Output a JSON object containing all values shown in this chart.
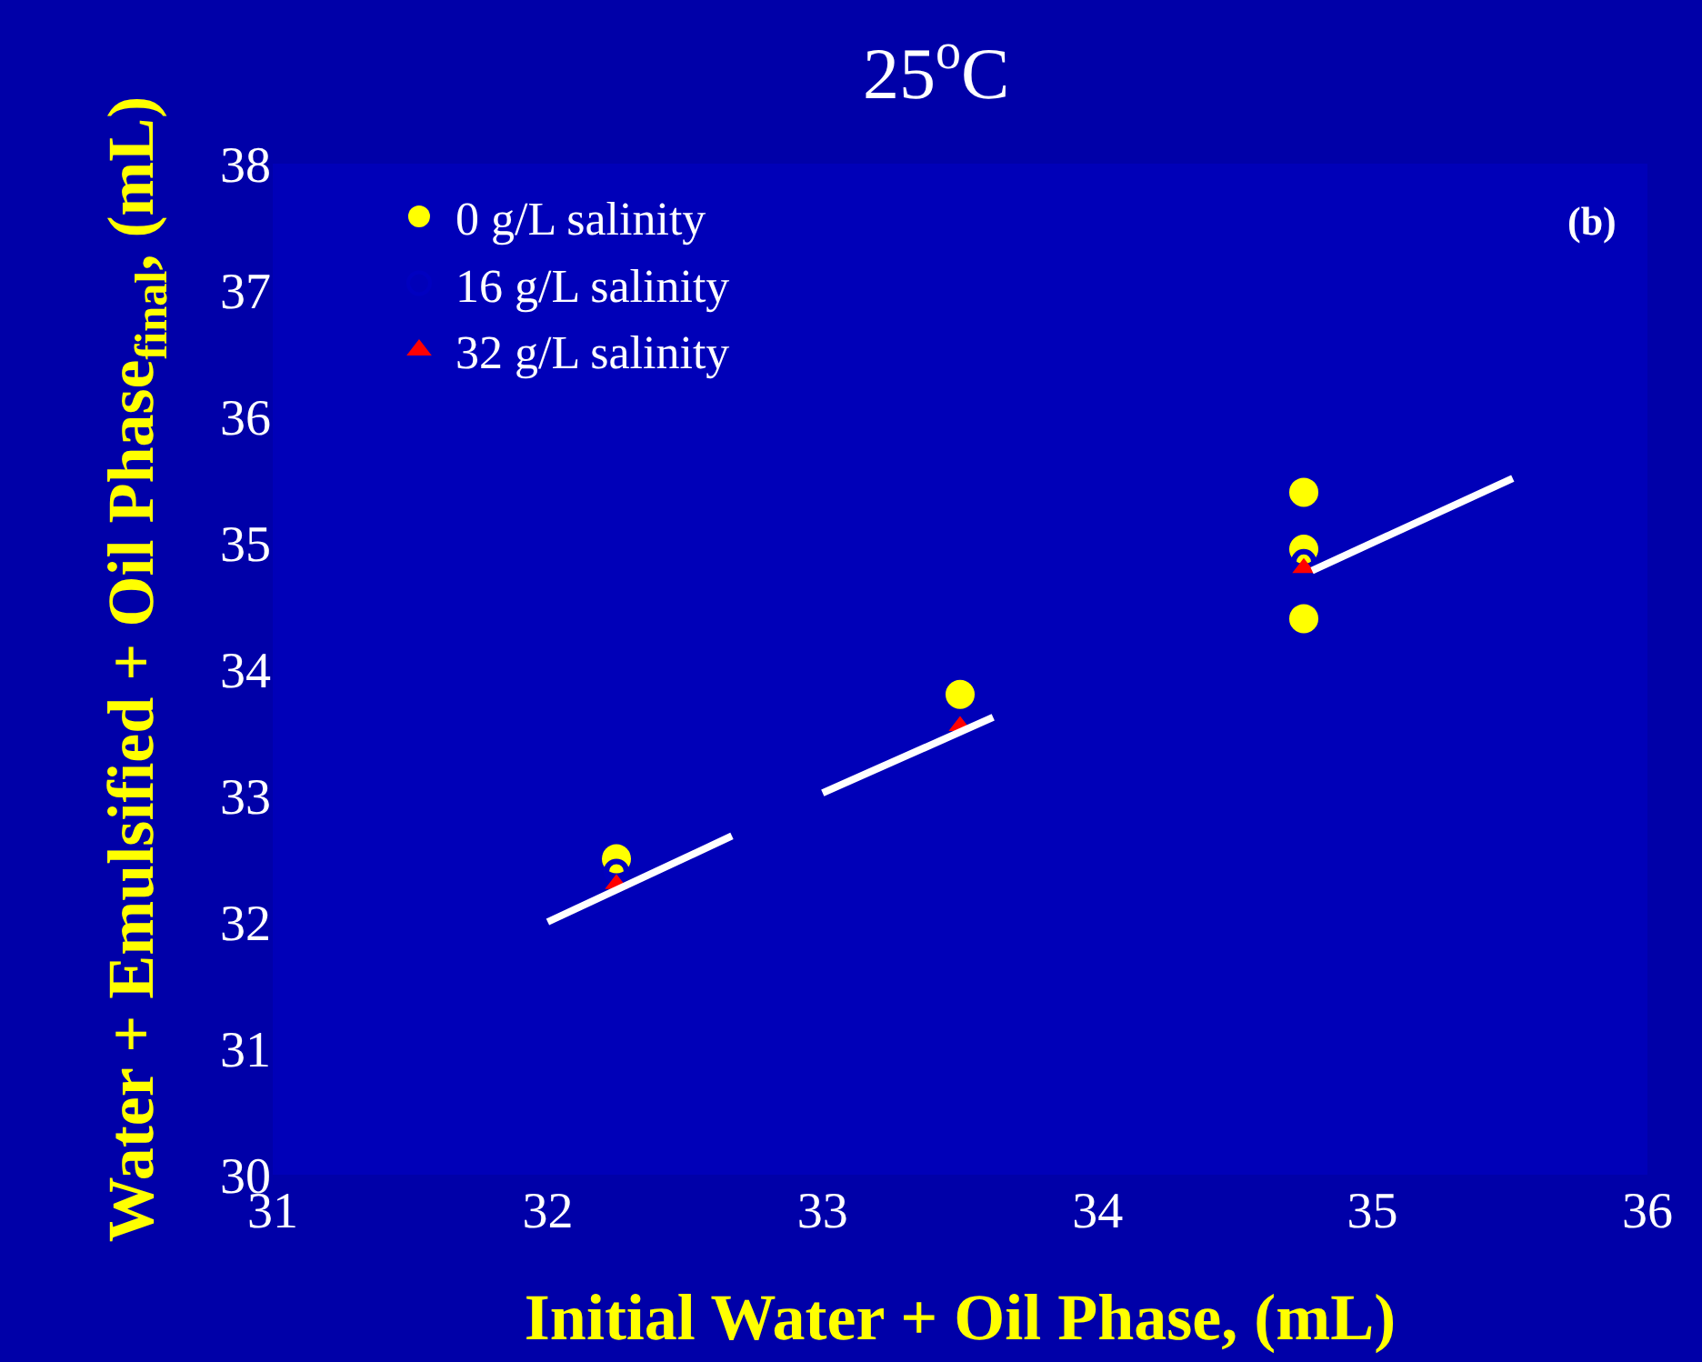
{
  "chart_data": {
    "type": "scatter",
    "title": "25$^{o}$C",
    "xlabel": "Initial Water + Oil Phase, (mL)",
    "ylabel": "Water + Emulsified + Oil Phase$_{final}$, (mL)",
    "annotations": [
      "(b)"
    ],
    "series": [
      {
        "name": "0 g/L salinity",
        "color": "#ffff00",
        "marker": "circle",
        "x": [
          32.25,
          33.5,
          34.75,
          34.75,
          34.75
        ],
        "values": [
          32.5,
          33.8,
          35.4,
          34.95,
          34.4
        ]
      },
      {
        "name": "16 g/L salinity",
        "color": "#0000c0",
        "marker": "circle-open",
        "x": [
          32.25,
          34.75
        ],
        "values": [
          32.4,
          34.85
        ]
      },
      {
        "name": "32 g/L salinity",
        "color": "#ff0000",
        "marker": "triangle",
        "x": [
          32.25,
          33.5,
          34.75
        ],
        "values": [
          32.3,
          33.55,
          34.8
        ]
      },
      {
        "type": "line",
        "color": "#ffffff",
        "x": [
          32.0,
          32.67
        ],
        "values": [
          32.0,
          32.68
        ]
      },
      {
        "type": "line",
        "color": "#ffffff",
        "x": [
          33.0,
          33.62
        ],
        "values": [
          33.02,
          33.62
        ]
      },
      {
        "type": "line",
        "color": "#ffffff",
        "x": [
          34.78,
          35.51
        ],
        "values": [
          34.78,
          35.51
        ]
      }
    ],
    "xlim": [
      31,
      36
    ],
    "xticks": [
      31,
      32,
      33,
      34,
      35,
      36
    ],
    "ylim": [
      30,
      38
    ],
    "yticks": [
      30,
      31,
      32,
      33,
      34,
      35,
      36,
      37,
      38
    ],
    "grid": false,
    "legend": "top left"
  }
}
